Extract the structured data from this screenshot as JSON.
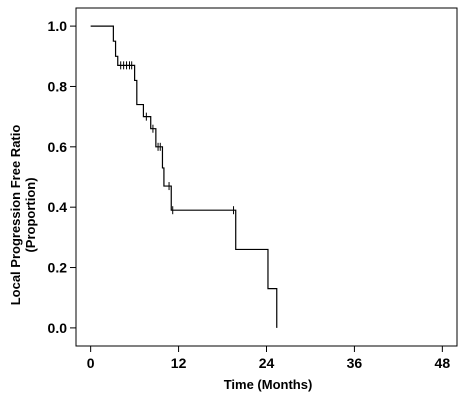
{
  "chart_data": {
    "type": "line",
    "chart_subtype": "kaplan-meier",
    "title": "",
    "xlabel": "Time (Months)",
    "ylabel_lines": [
      "Local Progression Free Ratio",
      "(Proportion)"
    ],
    "xlim": [
      -2,
      50
    ],
    "ylim": [
      -0.06,
      1.06
    ],
    "x_ticks": [
      0,
      12,
      24,
      36,
      48
    ],
    "x_tick_labels": [
      "0",
      "12",
      "24",
      "36",
      "48"
    ],
    "y_ticks": [
      0.0,
      0.2,
      0.4,
      0.6,
      0.8,
      1.0
    ],
    "y_tick_labels": [
      "0.0",
      "0.2",
      "0.4",
      "0.6",
      "0.8",
      "1.0"
    ],
    "grid": false,
    "legend": "none",
    "line_color": "#000000",
    "series": [
      {
        "steps": [
          {
            "x": 0.0,
            "y": 1.0
          },
          {
            "x": 3.1,
            "y": 0.95
          },
          {
            "x": 3.4,
            "y": 0.9
          },
          {
            "x": 3.7,
            "y": 0.87
          },
          {
            "x": 6.0,
            "y": 0.82
          },
          {
            "x": 6.3,
            "y": 0.74
          },
          {
            "x": 7.2,
            "y": 0.7
          },
          {
            "x": 8.2,
            "y": 0.66
          },
          {
            "x": 8.9,
            "y": 0.6
          },
          {
            "x": 9.8,
            "y": 0.53
          },
          {
            "x": 10.0,
            "y": 0.47
          },
          {
            "x": 11.0,
            "y": 0.39
          },
          {
            "x": 19.8,
            "y": 0.26
          },
          {
            "x": 24.2,
            "y": 0.13
          },
          {
            "x": 25.4,
            "y": 0.0
          }
        ],
        "censored": [
          {
            "x": 4.1,
            "y": 0.87
          },
          {
            "x": 4.5,
            "y": 0.87
          },
          {
            "x": 4.9,
            "y": 0.87
          },
          {
            "x": 5.3,
            "y": 0.87
          },
          {
            "x": 5.6,
            "y": 0.87
          },
          {
            "x": 7.6,
            "y": 0.7
          },
          {
            "x": 8.5,
            "y": 0.66
          },
          {
            "x": 9.2,
            "y": 0.6
          },
          {
            "x": 9.5,
            "y": 0.6
          },
          {
            "x": 10.7,
            "y": 0.47
          },
          {
            "x": 11.2,
            "y": 0.39
          },
          {
            "x": 19.5,
            "y": 0.39
          }
        ]
      }
    ]
  }
}
